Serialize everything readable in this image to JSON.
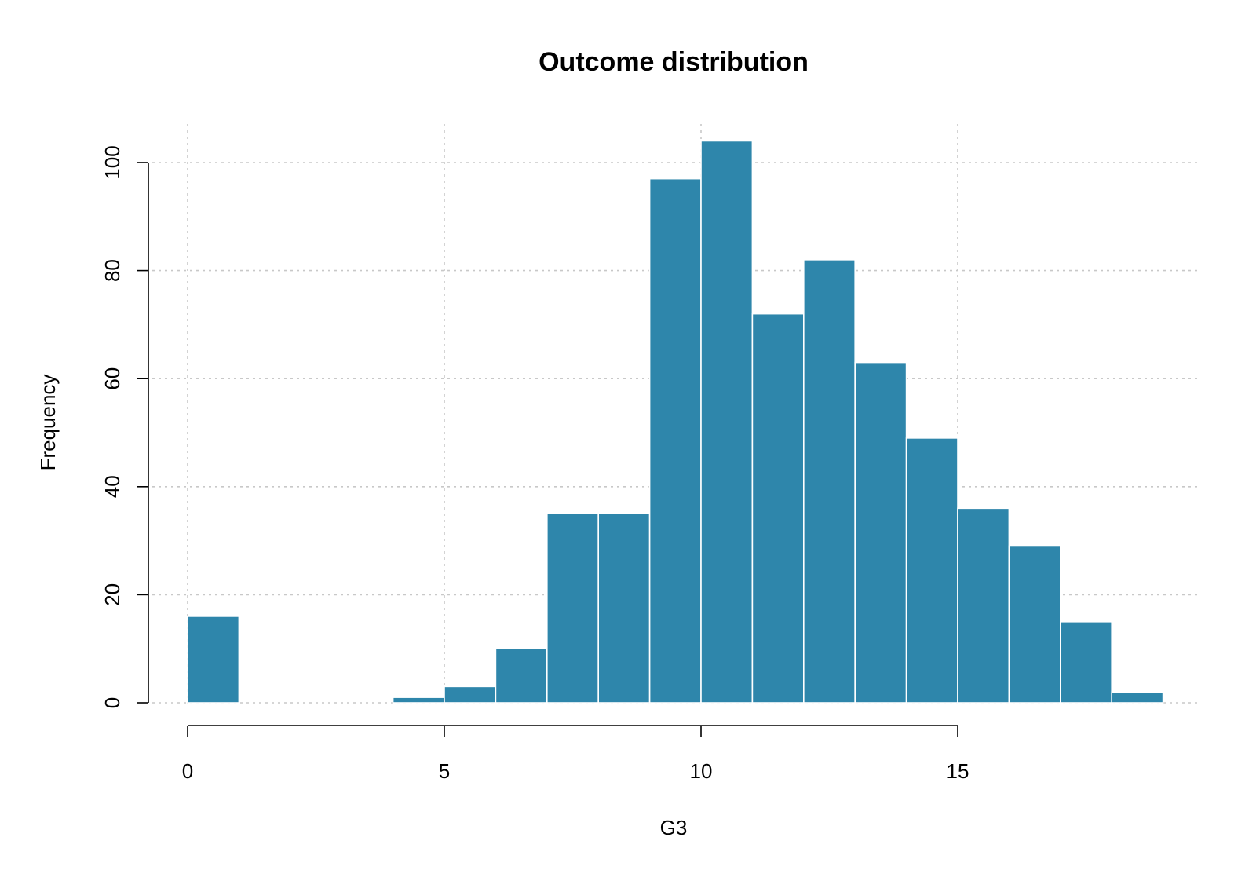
{
  "chart_data": {
    "type": "bar",
    "subtype": "histogram",
    "title": "Outcome distribution",
    "xlabel": "G3",
    "ylabel": "Frequency",
    "bin_edges": [
      0,
      1,
      2,
      3,
      4,
      5,
      6,
      7,
      8,
      9,
      10,
      11,
      12,
      13,
      14,
      15,
      16,
      17,
      18,
      19
    ],
    "values": [
      16,
      0,
      0,
      0,
      1,
      3,
      10,
      35,
      35,
      97,
      104,
      72,
      82,
      63,
      49,
      36,
      29,
      15,
      2
    ],
    "xlim": [
      0,
      19.7
    ],
    "ylim": [
      0,
      104
    ],
    "x_ticks": [
      0,
      5,
      10,
      15
    ],
    "y_ticks": [
      0,
      20,
      40,
      60,
      80,
      100
    ],
    "grid": true,
    "bar_color": "#2e86ab",
    "edge_color": "#ffffff",
    "grid_color": "#c8c8c8"
  }
}
